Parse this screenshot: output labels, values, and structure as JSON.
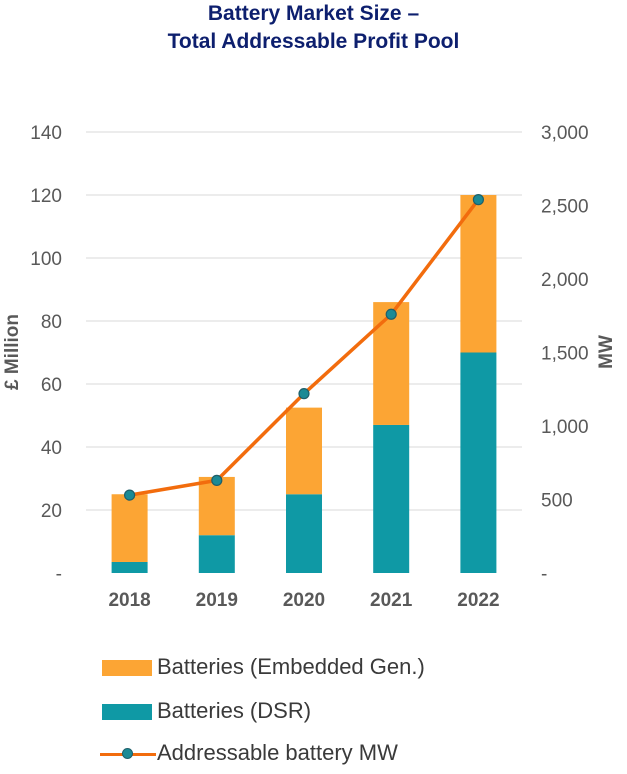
{
  "title": {
    "line1": "Battery Market Size –",
    "line2": "Total Addressable Profit Pool"
  },
  "chart_data": {
    "type": "bar",
    "stacked": true,
    "title": "Battery Market Size – Total Addressable Profit Pool",
    "categories": [
      "2018",
      "2019",
      "2020",
      "2021",
      "2022"
    ],
    "series": [
      {
        "name": "Batteries (DSR)",
        "kind": "bar",
        "axis": "left",
        "color": "#0f99a5",
        "values": [
          3.5,
          12,
          25,
          47,
          70
        ]
      },
      {
        "name": "Batteries (Embedded Gen.)",
        "kind": "bar",
        "axis": "left",
        "color": "#fca534",
        "values": [
          21.5,
          18.5,
          27.5,
          39,
          50
        ]
      },
      {
        "name": "Addressable battery MW",
        "kind": "line",
        "axis": "right",
        "color": "#f26c0d",
        "marker_color": "#1b8a95",
        "values": [
          530,
          630,
          1220,
          1760,
          2540
        ]
      }
    ],
    "ylabel": "£ Million",
    "y2label": "MW",
    "ylim": [
      0,
      140
    ],
    "y2lim": [
      0,
      3000
    ],
    "yticks": [
      {
        "value": 0,
        "label": "-"
      },
      {
        "value": 20,
        "label": "20"
      },
      {
        "value": 40,
        "label": "40"
      },
      {
        "value": 60,
        "label": "60"
      },
      {
        "value": 80,
        "label": "80"
      },
      {
        "value": 100,
        "label": "100"
      },
      {
        "value": 120,
        "label": "120"
      },
      {
        "value": 140,
        "label": "140"
      }
    ],
    "y2ticks": [
      {
        "value": 0,
        "label": "-"
      },
      {
        "value": 500,
        "label": "500"
      },
      {
        "value": 1000,
        "label": "1,000"
      },
      {
        "value": 1500,
        "label": "1,500"
      },
      {
        "value": 2000,
        "label": "2,000"
      },
      {
        "value": 2500,
        "label": "2,500"
      },
      {
        "value": 3000,
        "label": "3,000"
      }
    ],
    "grid": true,
    "legend_position": "bottom"
  },
  "legend": [
    {
      "label": "Batteries (Embedded Gen.)",
      "kind": "bar",
      "color": "#fca534"
    },
    {
      "label": "Batteries (DSR)",
      "kind": "bar",
      "color": "#0f99a5"
    },
    {
      "label": "Addressable battery MW",
      "kind": "line",
      "color": "#f26c0d"
    }
  ],
  "colors": {
    "title": "#0d1f6e",
    "axis_text": "#595959",
    "gridline": "#d9d9d9"
  }
}
